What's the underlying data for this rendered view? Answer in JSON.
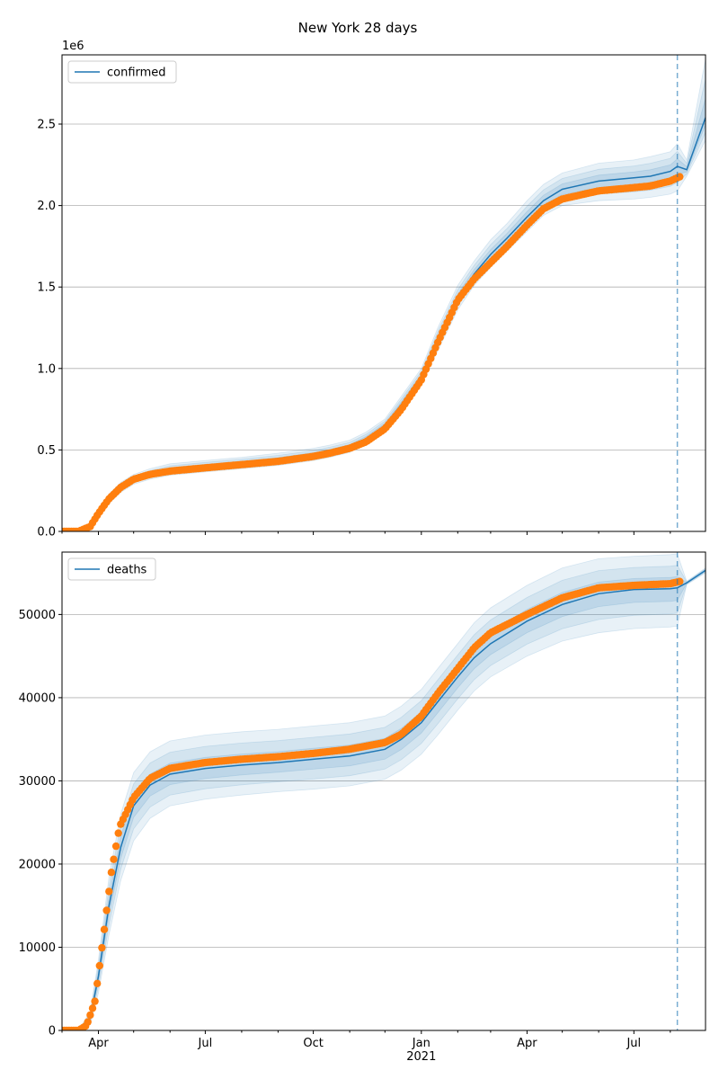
{
  "figure": {
    "title": "New York 28 days"
  },
  "colors": {
    "model": "#1f77b4",
    "observed": "#ff7f0e",
    "band": "#1f77b4",
    "grid": "#b0b0b0",
    "vline": "#1f77b4"
  },
  "chart_data": [
    {
      "type": "line",
      "panel": "top",
      "title": "",
      "ylabel": "",
      "xlabel": "",
      "y_offset_label": "1e6",
      "ylim": [
        0,
        2925000
      ],
      "xlim": [
        "2020-03-01",
        "2021-08-31"
      ],
      "grid": "horizontal",
      "legend": {
        "entries": [
          "confirmed"
        ],
        "placement": "upper-left"
      },
      "y_ticks": [
        0,
        500000,
        1000000,
        1500000,
        2000000,
        2500000
      ],
      "y_tick_labels": [
        "0.0",
        "0.5",
        "1.0",
        "1.5",
        "2.0",
        "2.5"
      ],
      "forecast_start": "2021-08-07",
      "series": [
        {
          "name": "confirmed",
          "kind": "model",
          "x": [
            "2020-03-01",
            "2020-03-15",
            "2020-03-25",
            "2020-04-01",
            "2020-04-10",
            "2020-04-20",
            "2020-05-01",
            "2020-05-15",
            "2020-06-01",
            "2020-07-01",
            "2020-08-01",
            "2020-09-01",
            "2020-10-01",
            "2020-10-15",
            "2020-11-01",
            "2020-11-15",
            "2020-12-01",
            "2020-12-15",
            "2021-01-01",
            "2021-01-15",
            "2021-02-01",
            "2021-02-15",
            "2021-03-01",
            "2021-03-15",
            "2021-04-01",
            "2021-04-15",
            "2021-05-01",
            "2021-06-01",
            "2021-07-01",
            "2021-07-15",
            "2021-08-01",
            "2021-08-07",
            "2021-08-15",
            "2021-08-31"
          ],
          "y": [
            0,
            0,
            30000,
            110000,
            200000,
            270000,
            320000,
            350000,
            380000,
            400000,
            420000,
            440000,
            470000,
            490000,
            520000,
            570000,
            650000,
            780000,
            950000,
            1180000,
            1430000,
            1580000,
            1700000,
            1800000,
            1930000,
            2030000,
            2100000,
            2150000,
            2170000,
            2180000,
            2210000,
            2240000,
            2220000,
            2540000
          ],
          "lower": [
            0,
            0,
            15000,
            85000,
            170000,
            240000,
            290000,
            320000,
            345000,
            365000,
            385000,
            405000,
            435000,
            455000,
            485000,
            535000,
            610000,
            730000,
            900000,
            1110000,
            1360000,
            1510000,
            1620000,
            1720000,
            1840000,
            1940000,
            2000000,
            2030000,
            2040000,
            2050000,
            2070000,
            2090000,
            2180000,
            2400000
          ],
          "upper": [
            0,
            0,
            45000,
            135000,
            230000,
            300000,
            350000,
            385000,
            415000,
            435000,
            455000,
            480000,
            510000,
            530000,
            560000,
            610000,
            690000,
            830000,
            1000000,
            1250000,
            1510000,
            1660000,
            1790000,
            1890000,
            2030000,
            2130000,
            2200000,
            2260000,
            2280000,
            2300000,
            2330000,
            2380000,
            2280000,
            2900000
          ]
        },
        {
          "name": "",
          "kind": "observed",
          "x": [
            "2020-03-01",
            "2020-03-15",
            "2020-03-25",
            "2020-04-01",
            "2020-04-10",
            "2020-04-20",
            "2020-05-01",
            "2020-05-15",
            "2020-06-01",
            "2020-07-01",
            "2020-08-01",
            "2020-09-01",
            "2020-10-01",
            "2020-10-15",
            "2020-11-01",
            "2020-11-15",
            "2020-12-01",
            "2020-12-15",
            "2021-01-01",
            "2021-01-15",
            "2021-02-01",
            "2021-02-15",
            "2021-03-01",
            "2021-03-15",
            "2021-04-01",
            "2021-04-15",
            "2021-05-01",
            "2021-06-01",
            "2021-07-01",
            "2021-07-15",
            "2021-08-01",
            "2021-08-10"
          ],
          "y": [
            0,
            0,
            30000,
            110000,
            200000,
            270000,
            320000,
            350000,
            370000,
            390000,
            410000,
            430000,
            460000,
            480000,
            510000,
            550000,
            630000,
            750000,
            930000,
            1160000,
            1420000,
            1550000,
            1650000,
            1750000,
            1880000,
            1980000,
            2040000,
            2090000,
            2110000,
            2120000,
            2150000,
            2180000
          ]
        }
      ]
    },
    {
      "type": "line",
      "panel": "bottom",
      "title": "",
      "ylabel": "",
      "xlabel": "",
      "ylim": [
        0,
        57500
      ],
      "xlim": [
        "2020-03-01",
        "2021-08-31"
      ],
      "grid": "horizontal",
      "legend": {
        "entries": [
          "deaths"
        ],
        "placement": "upper-left"
      },
      "y_ticks": [
        0,
        10000,
        20000,
        30000,
        40000,
        50000
      ],
      "y_tick_labels": [
        "0",
        "10000",
        "20000",
        "30000",
        "40000",
        "50000"
      ],
      "x_ticks": [
        "2020-04-01",
        "2020-07-01",
        "2020-10-01",
        "2021-01-01",
        "2021-04-01",
        "2021-07-01"
      ],
      "x_tick_labels": [
        "Apr",
        "Jul",
        "Oct",
        "Jan",
        "Apr",
        "Jul"
      ],
      "x_year_label": "2021",
      "forecast_start": "2021-08-07",
      "series": [
        {
          "name": "deaths",
          "kind": "model",
          "x": [
            "2020-03-01",
            "2020-03-15",
            "2020-03-25",
            "2020-04-01",
            "2020-04-10",
            "2020-04-20",
            "2020-05-01",
            "2020-05-15",
            "2020-06-01",
            "2020-07-01",
            "2020-08-01",
            "2020-09-01",
            "2020-10-01",
            "2020-11-01",
            "2020-12-01",
            "2020-12-15",
            "2021-01-01",
            "2021-01-15",
            "2021-02-01",
            "2021-02-15",
            "2021-03-01",
            "2021-04-01",
            "2021-05-01",
            "2021-06-01",
            "2021-07-01",
            "2021-08-01",
            "2021-08-07",
            "2021-08-15",
            "2021-08-31"
          ],
          "y": [
            0,
            0,
            1500,
            6500,
            15000,
            22000,
            27000,
            29500,
            30800,
            31500,
            31900,
            32200,
            32600,
            33000,
            33800,
            35000,
            37000,
            39500,
            42500,
            44800,
            46500,
            49200,
            51200,
            52500,
            53000,
            53100,
            53200,
            53800,
            55300
          ],
          "lower": [
            0,
            0,
            700,
            4500,
            11500,
            18000,
            22800,
            25500,
            27000,
            27800,
            28300,
            28700,
            29000,
            29400,
            30200,
            31300,
            33200,
            35500,
            38500,
            40800,
            42500,
            45000,
            46800,
            47800,
            48300,
            48500,
            48600,
            53600,
            55000
          ],
          "upper": [
            0,
            0,
            2300,
            8500,
            18500,
            26000,
            31000,
            33500,
            34800,
            35500,
            35900,
            36200,
            36600,
            37000,
            37800,
            39000,
            41000,
            43500,
            46500,
            49000,
            50800,
            53500,
            55600,
            56700,
            57000,
            57200,
            57300,
            54000,
            55600
          ]
        },
        {
          "name": "",
          "kind": "observed",
          "x": [
            "2020-03-01",
            "2020-03-15",
            "2020-03-22",
            "2020-03-29",
            "2020-04-05",
            "2020-04-12",
            "2020-04-19",
            "2020-05-01",
            "2020-05-15",
            "2020-06-01",
            "2020-07-01",
            "2020-08-01",
            "2020-09-01",
            "2020-10-01",
            "2020-11-01",
            "2020-12-01",
            "2020-12-15",
            "2021-01-01",
            "2021-01-15",
            "2021-02-01",
            "2021-02-15",
            "2021-03-01",
            "2021-04-01",
            "2021-05-01",
            "2021-06-01",
            "2021-07-01",
            "2021-08-01",
            "2021-08-10"
          ],
          "y": [
            0,
            0,
            600,
            3500,
            11000,
            19000,
            24500,
            28000,
            30300,
            31500,
            32200,
            32600,
            32900,
            33300,
            33800,
            34600,
            35600,
            37800,
            40500,
            43500,
            46000,
            47800,
            50000,
            52000,
            53200,
            53500,
            53700,
            54000
          ]
        }
      ]
    }
  ]
}
